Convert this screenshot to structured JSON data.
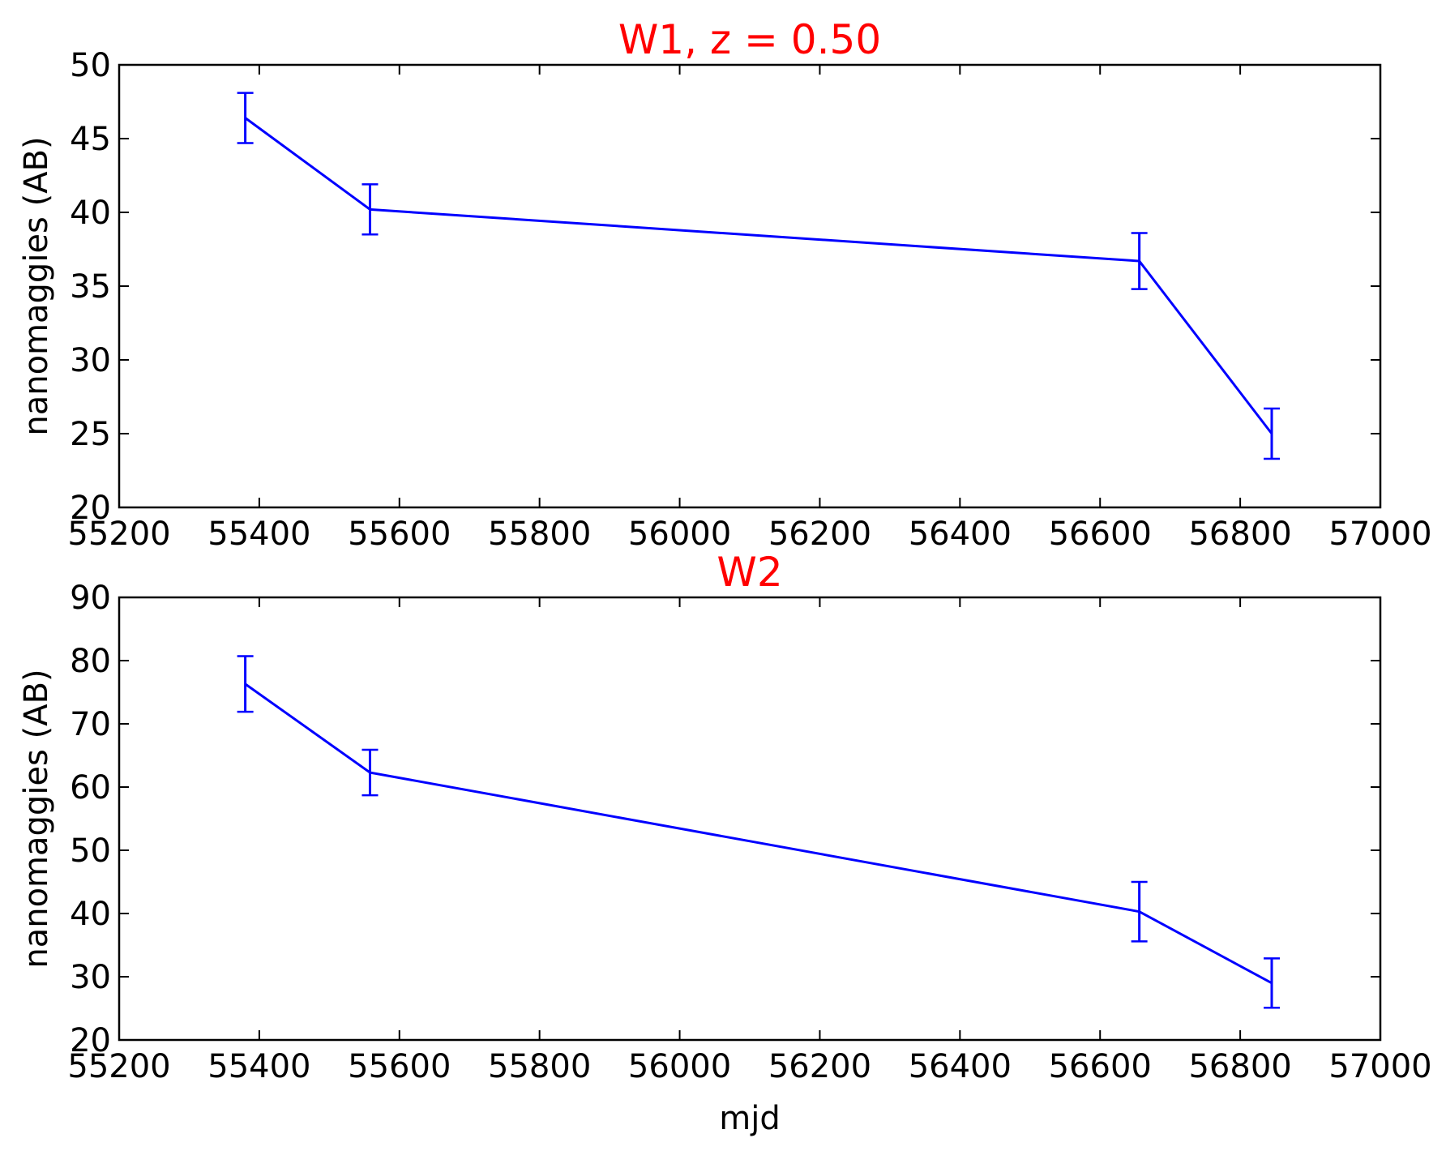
{
  "chart_data": [
    {
      "type": "line",
      "title": "W1, z = 0.50",
      "xlabel": "",
      "ylabel": "nanomaggies (AB)",
      "xlim": [
        55200,
        57000
      ],
      "ylim": [
        20,
        50
      ],
      "xticks": [
        55200,
        55400,
        55600,
        55800,
        56000,
        56200,
        56400,
        56600,
        56800,
        57000
      ],
      "yticks": [
        20,
        25,
        30,
        35,
        40,
        45,
        50
      ],
      "grid": false,
      "series": [
        {
          "x": [
            55380,
            55558,
            56656,
            56845
          ],
          "y": [
            46.4,
            40.2,
            36.7,
            25.0
          ],
          "yerr": [
            1.7,
            1.7,
            1.9,
            1.7
          ]
        }
      ]
    },
    {
      "type": "line",
      "title": "W2",
      "xlabel": "mjd",
      "ylabel": "nanomaggies (AB)",
      "xlim": [
        55200,
        57000
      ],
      "ylim": [
        20,
        90
      ],
      "xticks": [
        55200,
        55400,
        55600,
        55800,
        56000,
        56200,
        56400,
        56600,
        56800,
        57000
      ],
      "yticks": [
        20,
        30,
        40,
        50,
        60,
        70,
        80,
        90
      ],
      "grid": false,
      "series": [
        {
          "x": [
            55380,
            55558,
            56656,
            56845
          ],
          "y": [
            76.3,
            62.3,
            40.3,
            29.0
          ],
          "yerr": [
            4.4,
            3.6,
            4.7,
            3.9
          ]
        }
      ]
    }
  ],
  "colors": {
    "series": "#0000ff",
    "title": "#ff0000",
    "axes": "#000000"
  }
}
